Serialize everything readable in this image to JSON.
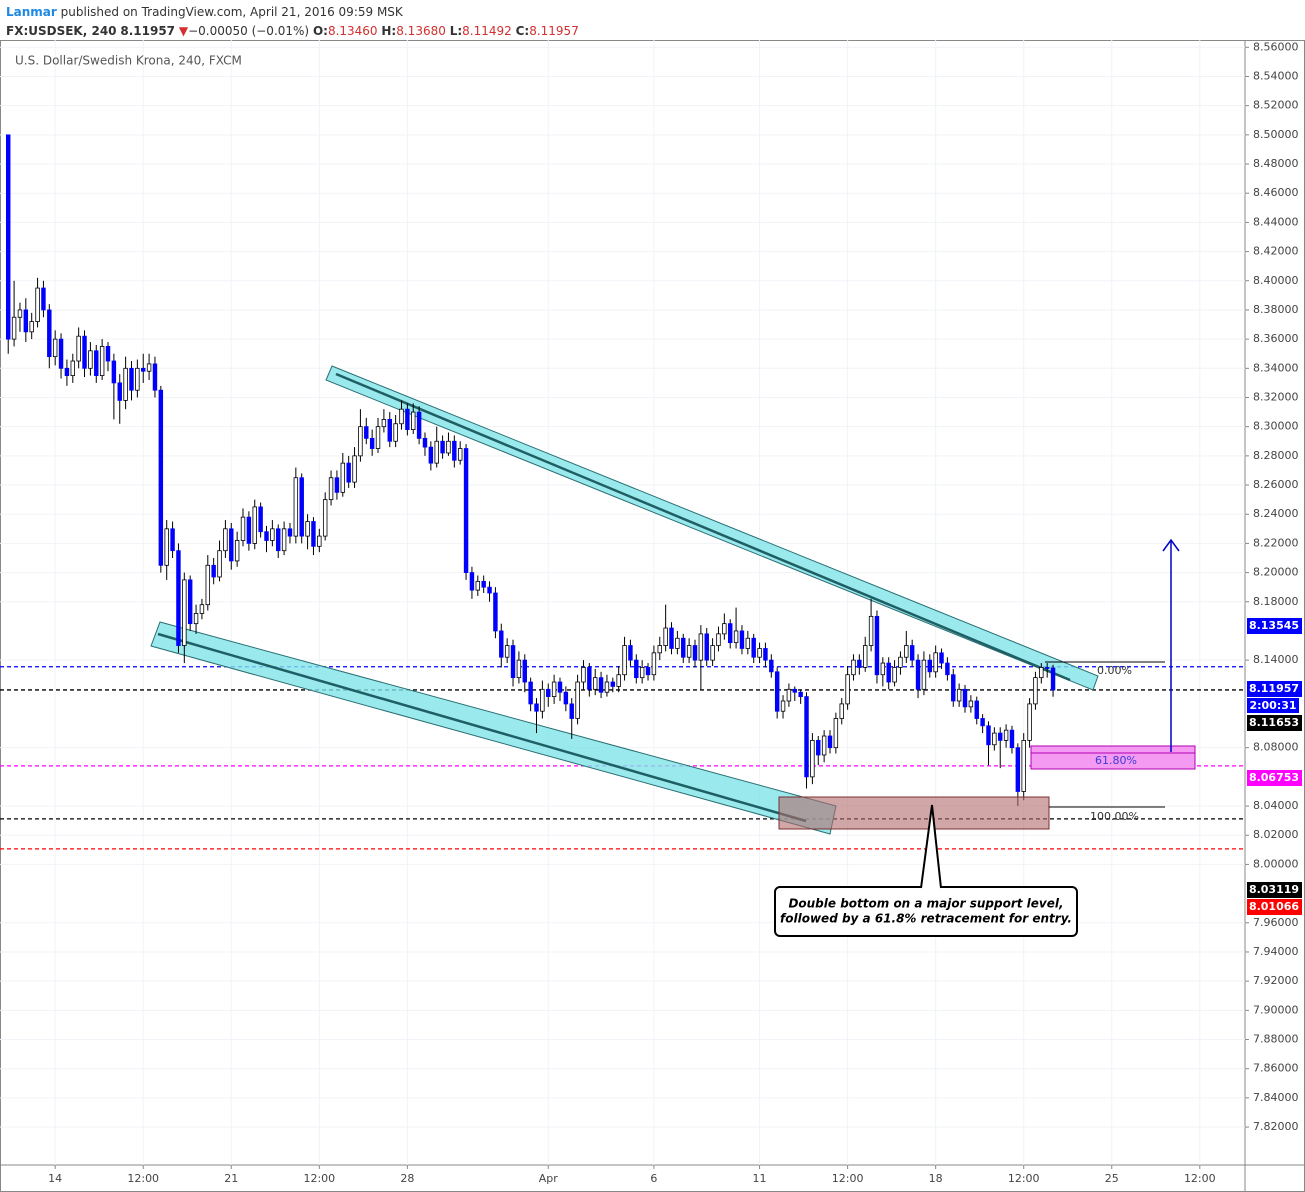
{
  "header": {
    "author": "Lanmar",
    "published": "published on TradingView.com, April 21, 2016 09:59 MSK",
    "symbol": "FX:USDSEK, 240",
    "last": "8.11957",
    "arrow": "▼",
    "change": "−0.00050 (−0.01%)",
    "o_label": "O:",
    "o": "8.13460",
    "h_label": "H:",
    "h": "8.13680",
    "l_label": "L:",
    "l": "8.11492",
    "c_label": "C:",
    "c": "8.11957"
  },
  "chart_data": {
    "type": "candlestick",
    "title": "U.S. Dollar/Swedish Krona, 240, FXCM",
    "up_color": "#ffffff",
    "down_color": "#0000ff",
    "grid": true,
    "xlim": [
      -1.4,
      210.7
    ],
    "ylim": [
      7.794,
      8.565
    ],
    "xticks": [
      {
        "value": 8,
        "label": "14"
      },
      {
        "value": 23,
        "label": "12:00"
      },
      {
        "value": 38,
        "label": "21"
      },
      {
        "value": 53,
        "label": "12:00"
      },
      {
        "value": 68,
        "label": "28"
      },
      {
        "value": 92,
        "label": "Apr"
      },
      {
        "value": 110,
        "label": "6"
      },
      {
        "value": 128,
        "label": "11"
      },
      {
        "value": 143,
        "label": "12:00"
      },
      {
        "value": 158,
        "label": "18"
      },
      {
        "value": 173,
        "label": "12:00"
      },
      {
        "value": 188,
        "label": "25"
      },
      {
        "value": 203,
        "label": "12:00"
      }
    ],
    "yticks": [
      {
        "value": 8.56,
        "label": "8.56000"
      },
      {
        "value": 8.54,
        "label": "8.54000"
      },
      {
        "value": 8.52,
        "label": "8.52000"
      },
      {
        "value": 8.5,
        "label": "8.50000"
      },
      {
        "value": 8.48,
        "label": "8.48000"
      },
      {
        "value": 8.46,
        "label": "8.46000"
      },
      {
        "value": 8.44,
        "label": "8.44000"
      },
      {
        "value": 8.42,
        "label": "8.42000"
      },
      {
        "value": 8.4,
        "label": "8.40000"
      },
      {
        "value": 8.38,
        "label": "8.38000"
      },
      {
        "value": 8.36,
        "label": "8.36000"
      },
      {
        "value": 8.34,
        "label": "8.34000"
      },
      {
        "value": 8.32,
        "label": "8.32000"
      },
      {
        "value": 8.3,
        "label": "8.30000"
      },
      {
        "value": 8.28,
        "label": "8.28000"
      },
      {
        "value": 8.26,
        "label": "8.26000"
      },
      {
        "value": 8.24,
        "label": "8.24000"
      },
      {
        "value": 8.22,
        "label": "8.22000"
      },
      {
        "value": 8.2,
        "label": "8.20000"
      },
      {
        "value": 8.18,
        "label": "8.18000"
      },
      {
        "value": 8.14,
        "label": "8.14000"
      },
      {
        "value": 8.08,
        "label": "8.08000"
      },
      {
        "value": 8.04,
        "label": "8.04000"
      },
      {
        "value": 8.02,
        "label": "8.02000"
      },
      {
        "value": 8.0,
        "label": "8.00000"
      },
      {
        "value": 7.96,
        "label": "7.96000"
      },
      {
        "value": 7.94,
        "label": "7.94000"
      },
      {
        "value": 7.92,
        "label": "7.92000"
      },
      {
        "value": 7.9,
        "label": "7.90000"
      },
      {
        "value": 7.88,
        "label": "7.88000"
      },
      {
        "value": 7.86,
        "label": "7.86000"
      },
      {
        "value": 7.84,
        "label": "7.84000"
      },
      {
        "value": 7.82,
        "label": "7.82000"
      }
    ],
    "price_lines": [
      {
        "value": 8.13545,
        "color": "#0000ff",
        "line": true
      },
      {
        "value": 8.11957,
        "color": "#000000",
        "line": true,
        "label_color": "#0000ff"
      },
      {
        "value": 8.11653,
        "color": "#000000",
        "line": false
      },
      {
        "value": 8.06753,
        "color": "#ff00ff",
        "line": true
      },
      {
        "value": 8.03119,
        "color": "#000000",
        "line": true
      },
      {
        "value": 8.01066,
        "color": "#ff0000",
        "line": true
      }
    ],
    "countdown": "2:00:31",
    "fib_labels": [
      "0.00%",
      "61.80%",
      "100.00%"
    ],
    "annotation": [
      "Double bottom on a major support level,",
      "followed by a 61.8% retracement for entry."
    ],
    "ohlc": [
      [
        8.5,
        8.5,
        8.35,
        8.36
      ],
      [
        8.36,
        8.4,
        8.355,
        8.375
      ],
      [
        8.375,
        8.385,
        8.365,
        8.38
      ],
      [
        8.38,
        8.388,
        8.358,
        8.365
      ],
      [
        8.365,
        8.378,
        8.36,
        8.372
      ],
      [
        8.372,
        8.402,
        8.368,
        8.395
      ],
      [
        8.395,
        8.4,
        8.375,
        8.38
      ],
      [
        8.38,
        8.384,
        8.34,
        8.348
      ],
      [
        8.348,
        8.366,
        8.342,
        8.36
      ],
      [
        8.36,
        8.364,
        8.333,
        8.34
      ],
      [
        8.34,
        8.346,
        8.328,
        8.335
      ],
      [
        8.335,
        8.35,
        8.33,
        8.345
      ],
      [
        8.345,
        8.368,
        8.34,
        8.362
      ],
      [
        8.362,
        8.366,
        8.334,
        8.34
      ],
      [
        8.34,
        8.358,
        8.335,
        8.352
      ],
      [
        8.352,
        8.356,
        8.33,
        8.335
      ],
      [
        8.335,
        8.36,
        8.332,
        8.355
      ],
      [
        8.355,
        8.358,
        8.338,
        8.345
      ],
      [
        8.345,
        8.35,
        8.305,
        8.33
      ],
      [
        8.33,
        8.336,
        8.302,
        8.318
      ],
      [
        8.318,
        8.348,
        8.312,
        8.34
      ],
      [
        8.34,
        8.345,
        8.318,
        8.325
      ],
      [
        8.325,
        8.346,
        8.32,
        8.34
      ],
      [
        8.34,
        8.35,
        8.33,
        8.338
      ],
      [
        8.338,
        8.35,
        8.332,
        8.343
      ],
      [
        8.343,
        8.348,
        8.32,
        8.325
      ],
      [
        8.325,
        8.328,
        8.2,
        8.205
      ],
      [
        8.205,
        8.236,
        8.195,
        8.23
      ],
      [
        8.23,
        8.235,
        8.21,
        8.215
      ],
      [
        8.215,
        8.22,
        8.145,
        8.15
      ],
      [
        8.15,
        8.2,
        8.138,
        8.195
      ],
      [
        8.195,
        8.198,
        8.16,
        8.165
      ],
      [
        8.165,
        8.178,
        8.158,
        8.172
      ],
      [
        8.172,
        8.182,
        8.168,
        8.178
      ],
      [
        8.178,
        8.212,
        8.174,
        8.205
      ],
      [
        8.205,
        8.21,
        8.192,
        8.197
      ],
      [
        8.197,
        8.222,
        8.194,
        8.215
      ],
      [
        8.215,
        8.236,
        8.21,
        8.23
      ],
      [
        8.23,
        8.234,
        8.202,
        8.208
      ],
      [
        8.208,
        8.228,
        8.204,
        8.222
      ],
      [
        8.222,
        8.244,
        8.218,
        8.238
      ],
      [
        8.238,
        8.242,
        8.215,
        8.22
      ],
      [
        8.22,
        8.25,
        8.216,
        8.245
      ],
      [
        8.245,
        8.248,
        8.224,
        8.228
      ],
      [
        8.228,
        8.232,
        8.214,
        8.222
      ],
      [
        8.222,
        8.236,
        8.218,
        8.23
      ],
      [
        8.23,
        8.233,
        8.21,
        8.215
      ],
      [
        8.215,
        8.235,
        8.212,
        8.23
      ],
      [
        8.23,
        8.234,
        8.22,
        8.225
      ],
      [
        8.225,
        8.272,
        8.22,
        8.265
      ],
      [
        8.265,
        8.268,
        8.22,
        8.225
      ],
      [
        8.225,
        8.24,
        8.216,
        8.235
      ],
      [
        8.235,
        8.238,
        8.212,
        8.218
      ],
      [
        8.218,
        8.23,
        8.214,
        8.225
      ],
      [
        8.225,
        8.255,
        8.222,
        8.25
      ],
      [
        8.25,
        8.27,
        8.246,
        8.265
      ],
      [
        8.265,
        8.27,
        8.25,
        8.255
      ],
      [
        8.255,
        8.282,
        8.252,
        8.275
      ],
      [
        8.275,
        8.28,
        8.258,
        8.262
      ],
      [
        8.262,
        8.286,
        8.258,
        8.28
      ],
      [
        8.28,
        8.312,
        8.276,
        8.3
      ],
      [
        8.3,
        8.306,
        8.288,
        8.292
      ],
      [
        8.292,
        8.298,
        8.28,
        8.285
      ],
      [
        8.285,
        8.306,
        8.282,
        8.3
      ],
      [
        8.3,
        8.312,
        8.296,
        8.305
      ],
      [
        8.305,
        8.31,
        8.286,
        8.29
      ],
      [
        8.29,
        8.308,
        8.286,
        8.302
      ],
      [
        8.302,
        8.318,
        8.298,
        8.312
      ],
      [
        8.312,
        8.316,
        8.294,
        8.298
      ],
      [
        8.298,
        8.316,
        8.295,
        8.31
      ],
      [
        8.31,
        8.314,
        8.288,
        8.292
      ],
      [
        8.292,
        8.296,
        8.28,
        8.286
      ],
      [
        8.286,
        8.29,
        8.27,
        8.275
      ],
      [
        8.275,
        8.3,
        8.272,
        8.29
      ],
      [
        8.29,
        8.294,
        8.278,
        8.282
      ],
      [
        8.282,
        8.296,
        8.28,
        8.29
      ],
      [
        8.29,
        8.294,
        8.272,
        8.277
      ],
      [
        8.277,
        8.29,
        8.274,
        8.285
      ],
      [
        8.285,
        8.288,
        8.195,
        8.2
      ],
      [
        8.2,
        8.204,
        8.182,
        8.188
      ],
      [
        8.188,
        8.198,
        8.184,
        8.194
      ],
      [
        8.194,
        8.198,
        8.186,
        8.19
      ],
      [
        8.19,
        8.194,
        8.18,
        8.186
      ],
      [
        8.186,
        8.19,
        8.155,
        8.16
      ],
      [
        8.16,
        8.165,
        8.135,
        8.142
      ],
      [
        8.142,
        8.155,
        8.138,
        8.15
      ],
      [
        8.15,
        8.154,
        8.122,
        8.128
      ],
      [
        8.128,
        8.146,
        8.124,
        8.14
      ],
      [
        8.14,
        8.144,
        8.118,
        8.125
      ],
      [
        8.125,
        8.128,
        8.105,
        8.11
      ],
      [
        8.11,
        8.114,
        8.09,
        8.105
      ],
      [
        8.105,
        8.126,
        8.1,
        8.12
      ],
      [
        8.12,
        8.124,
        8.108,
        8.115
      ],
      [
        8.115,
        8.13,
        8.11,
        8.125
      ],
      [
        8.125,
        8.128,
        8.112,
        8.118
      ],
      [
        8.118,
        8.122,
        8.105,
        8.11
      ],
      [
        8.11,
        8.114,
        8.086,
        8.1
      ],
      [
        8.1,
        8.13,
        8.096,
        8.125
      ],
      [
        8.125,
        8.14,
        8.12,
        8.135
      ],
      [
        8.135,
        8.138,
        8.115,
        8.12
      ],
      [
        8.12,
        8.134,
        8.116,
        8.128
      ],
      [
        8.128,
        8.132,
        8.114,
        8.118
      ],
      [
        8.118,
        8.13,
        8.115,
        8.125
      ],
      [
        8.125,
        8.128,
        8.118,
        8.122
      ],
      [
        8.122,
        8.136,
        8.118,
        8.13
      ],
      [
        8.13,
        8.156,
        8.126,
        8.15
      ],
      [
        8.15,
        8.154,
        8.136,
        8.14
      ],
      [
        8.14,
        8.144,
        8.124,
        8.128
      ],
      [
        8.128,
        8.14,
        8.124,
        8.135
      ],
      [
        8.135,
        8.138,
        8.126,
        8.13
      ],
      [
        8.13,
        8.15,
        8.126,
        8.145
      ],
      [
        8.145,
        8.156,
        8.14,
        8.15
      ],
      [
        8.15,
        8.178,
        8.146,
        8.162
      ],
      [
        8.162,
        8.166,
        8.144,
        8.148
      ],
      [
        8.148,
        8.16,
        8.144,
        8.155
      ],
      [
        8.155,
        8.158,
        8.138,
        8.142
      ],
      [
        8.142,
        8.155,
        8.138,
        8.15
      ],
      [
        8.15,
        8.154,
        8.135,
        8.14
      ],
      [
        8.14,
        8.164,
        8.12,
        8.158
      ],
      [
        8.158,
        8.162,
        8.136,
        8.14
      ],
      [
        8.14,
        8.155,
        8.136,
        8.15
      ],
      [
        8.15,
        8.163,
        8.146,
        8.158
      ],
      [
        8.158,
        8.172,
        8.154,
        8.165
      ],
      [
        8.165,
        8.168,
        8.148,
        8.152
      ],
      [
        8.152,
        8.176,
        8.148,
        8.16
      ],
      [
        8.16,
        8.164,
        8.144,
        8.148
      ],
      [
        8.148,
        8.16,
        8.144,
        8.155
      ],
      [
        8.155,
        8.158,
        8.138,
        8.142
      ],
      [
        8.142,
        8.152,
        8.138,
        8.148
      ],
      [
        8.148,
        8.152,
        8.135,
        8.14
      ],
      [
        8.14,
        8.144,
        8.128,
        8.132
      ],
      [
        8.132,
        8.135,
        8.1,
        8.105
      ],
      [
        8.105,
        8.116,
        8.1,
        8.112
      ],
      [
        8.112,
        8.124,
        8.108,
        8.12
      ],
      [
        8.12,
        8.122,
        8.112,
        8.118
      ],
      [
        8.118,
        8.12,
        8.11,
        8.115
      ],
      [
        8.115,
        8.118,
        8.052,
        8.06
      ],
      [
        8.06,
        8.09,
        8.055,
        8.085
      ],
      [
        8.085,
        8.088,
        8.068,
        8.075
      ],
      [
        8.075,
        8.092,
        8.07,
        8.088
      ],
      [
        8.088,
        8.092,
        8.076,
        8.08
      ],
      [
        8.08,
        8.104,
        8.076,
        8.1
      ],
      [
        8.1,
        8.114,
        8.096,
        8.11
      ],
      [
        8.11,
        8.136,
        8.106,
        8.13
      ],
      [
        8.13,
        8.144,
        8.126,
        8.14
      ],
      [
        8.14,
        8.144,
        8.13,
        8.135
      ],
      [
        8.135,
        8.156,
        8.132,
        8.15
      ],
      [
        8.15,
        8.182,
        8.146,
        8.17
      ],
      [
        8.17,
        8.174,
        8.124,
        8.13
      ],
      [
        8.13,
        8.142,
        8.122,
        8.138
      ],
      [
        8.138,
        8.142,
        8.12,
        8.125
      ],
      [
        8.125,
        8.14,
        8.122,
        8.135
      ],
      [
        8.135,
        8.146,
        8.13,
        8.142
      ],
      [
        8.142,
        8.16,
        8.138,
        8.15
      ],
      [
        8.15,
        8.154,
        8.136,
        8.14
      ],
      [
        8.14,
        8.144,
        8.114,
        8.12
      ],
      [
        8.12,
        8.146,
        8.116,
        8.14
      ],
      [
        8.14,
        8.144,
        8.128,
        8.132
      ],
      [
        8.132,
        8.15,
        8.128,
        8.145
      ],
      [
        8.145,
        8.148,
        8.134,
        8.138
      ],
      [
        8.138,
        8.142,
        8.126,
        8.13
      ],
      [
        8.13,
        8.134,
        8.108,
        8.112
      ],
      [
        8.112,
        8.124,
        8.108,
        8.12
      ],
      [
        8.12,
        8.123,
        8.104,
        8.108
      ],
      [
        8.108,
        8.116,
        8.104,
        8.112
      ],
      [
        8.112,
        8.115,
        8.096,
        8.1
      ],
      [
        8.1,
        8.103,
        8.09,
        8.095
      ],
      [
        8.095,
        8.098,
        8.068,
        8.082
      ],
      [
        8.082,
        8.094,
        8.078,
        8.09
      ],
      [
        8.09,
        8.094,
        8.066,
        8.085
      ],
      [
        8.085,
        8.096,
        8.08,
        8.092
      ],
      [
        8.092,
        8.095,
        8.076,
        8.08
      ],
      [
        8.08,
        8.083,
        8.04,
        8.05
      ],
      [
        8.05,
        8.09,
        8.044,
        8.085
      ],
      [
        8.085,
        8.114,
        8.08,
        8.11
      ],
      [
        8.11,
        8.132,
        8.106,
        8.128
      ],
      [
        8.128,
        8.138,
        8.124,
        8.135
      ],
      [
        8.135,
        8.138,
        8.128,
        8.1346
      ],
      [
        8.1346,
        8.1368,
        8.11492,
        8.11957
      ]
    ]
  }
}
